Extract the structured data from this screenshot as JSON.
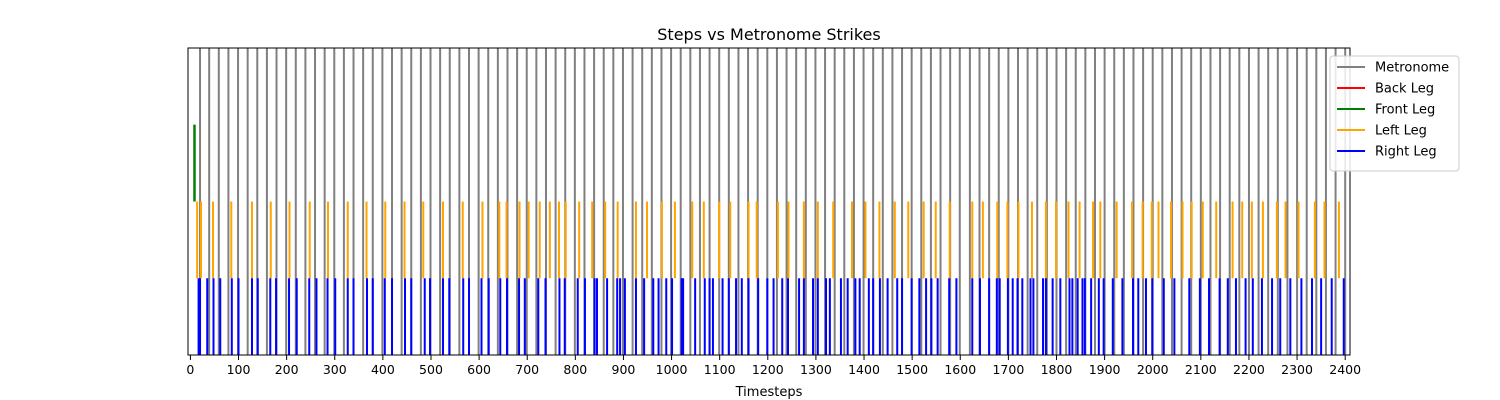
{
  "chart_data": {
    "type": "event-lines",
    "title": "Steps vs Metronome Strikes",
    "xlabel": "Timesteps",
    "ylabel": "",
    "xlim": [
      -5,
      2410
    ],
    "ylim": [
      0,
      4
    ],
    "x_ticks": [
      0,
      100,
      200,
      300,
      400,
      500,
      600,
      700,
      800,
      900,
      1000,
      1100,
      1200,
      1300,
      1400,
      1500,
      1600,
      1700,
      1800,
      1900,
      2000,
      2100,
      2200,
      2300,
      2400
    ],
    "legend_position": "top-right",
    "grid": false,
    "series": [
      {
        "name": "Metronome",
        "color": "#808080",
        "y_range": [
          0,
          4
        ],
        "x": [
          20,
          39,
          59,
          79,
          99,
          119,
          139,
          159,
          179,
          199,
          219,
          239,
          259,
          279,
          299,
          319,
          339,
          359,
          379,
          399,
          419,
          439,
          459,
          479,
          499,
          519,
          539,
          559,
          579,
          599,
          619,
          639,
          659,
          679,
          699,
          719,
          739,
          759,
          779,
          799,
          819,
          839,
          859,
          879,
          899,
          919,
          939,
          959,
          979,
          999,
          1019,
          1039,
          1059,
          1079,
          1099,
          1119,
          1139,
          1159,
          1179,
          1199,
          1219,
          1239,
          1259,
          1279,
          1299,
          1319,
          1339,
          1359,
          1379,
          1399,
          1419,
          1439,
          1459,
          1479,
          1499,
          1519,
          1539,
          1559,
          1579,
          1599,
          1620,
          1640,
          1660,
          1680,
          1700,
          1720,
          1740,
          1760,
          1780,
          1800,
          1820,
          1840,
          1860,
          1880,
          1900,
          1920,
          1940,
          1960,
          1980,
          2000,
          2020,
          2040,
          2060,
          2080,
          2100,
          2120,
          2140,
          2160,
          2180,
          2200,
          2220,
          2240,
          2260,
          2280,
          2300,
          2320,
          2340,
          2360,
          2380,
          2400
        ]
      },
      {
        "name": "Back Leg",
        "color": "#ff0000",
        "y_range": [
          3,
          4
        ],
        "x": []
      },
      {
        "name": "Front Leg",
        "color": "#008000",
        "y_range": [
          2,
          3
        ],
        "x": [
          8,
          9
        ]
      },
      {
        "name": "Left Leg",
        "color": "#ffa500",
        "y_range": [
          1,
          2
        ],
        "x": [
          14,
          22,
          47,
          85,
          128,
          167,
          206,
          248,
          286,
          327,
          366,
          405,
          445,
          484,
          525,
          566,
          607,
          642,
          657,
          684,
          703,
          726,
          747,
          766,
          780,
          808,
          835,
          862,
          888,
          926,
          949,
          980,
          1007,
          1043,
          1067,
          1099,
          1122,
          1160,
          1177,
          1221,
          1243,
          1275,
          1304,
          1336,
          1375,
          1403,
          1432,
          1464,
          1492,
          1524,
          1549,
          1578,
          1625,
          1647,
          1677,
          1698,
          1721,
          1749,
          1778,
          1799,
          1825,
          1848,
          1876,
          1891,
          1925,
          1957,
          1979,
          1998,
          2012,
          2038,
          2062,
          2081,
          2104,
          2132,
          2166,
          2186,
          2206,
          2229,
          2258,
          2276,
          2303,
          2337,
          2357,
          2387
        ]
      },
      {
        "name": "Right Leg",
        "color": "#0000ff",
        "y_range": [
          0,
          1
        ],
        "x": [
          17,
          20,
          35,
          48,
          62,
          86,
          100,
          128,
          140,
          166,
          178,
          205,
          221,
          247,
          262,
          285,
          301,
          327,
          339,
          367,
          379,
          404,
          419,
          446,
          459,
          487,
          498,
          525,
          538,
          567,
          579,
          605,
          620,
          644,
          658,
          683,
          695,
          723,
          738,
          767,
          778,
          805,
          820,
          840,
          845,
          866,
          887,
          893,
          903,
          926,
          943,
          962,
          973,
          989,
          1001,
          1021,
          1024,
          1049,
          1069,
          1079,
          1086,
          1106,
          1119,
          1134,
          1146,
          1160,
          1180,
          1199,
          1212,
          1230,
          1242,
          1265,
          1275,
          1294,
          1304,
          1321,
          1329,
          1352,
          1366,
          1382,
          1391,
          1410,
          1419,
          1433,
          1449,
          1469,
          1479,
          1499,
          1515,
          1529,
          1540,
          1553,
          1577,
          1592,
          1625,
          1641,
          1660,
          1676,
          1682,
          1699,
          1709,
          1719,
          1729,
          1746,
          1752,
          1772,
          1778,
          1792,
          1808,
          1827,
          1833,
          1844,
          1854,
          1859,
          1872,
          1888,
          1898,
          1917,
          1937,
          1959,
          1970,
          1986,
          1999,
          2023,
          2045,
          2076,
          2098,
          2117,
          2139,
          2156,
          2173,
          2193,
          2208,
          2227,
          2248,
          2265,
          2286,
          2309,
          2331,
          2350,
          2372,
          2397
        ]
      }
    ]
  }
}
